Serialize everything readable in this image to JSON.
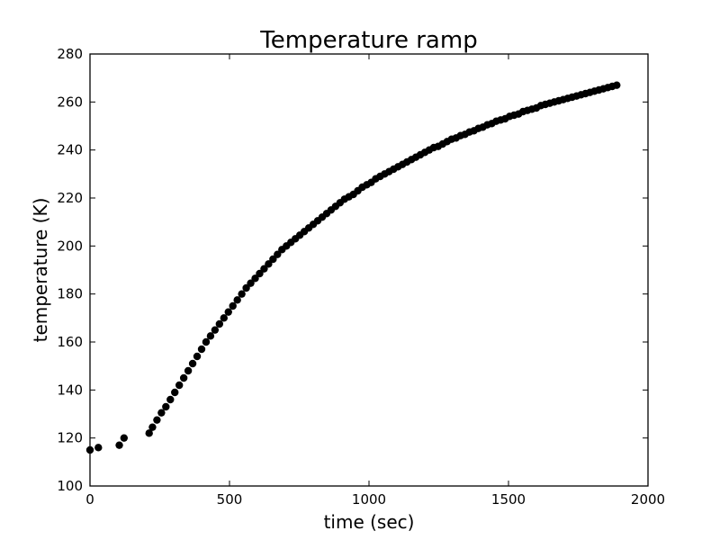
{
  "chart_data": {
    "type": "scatter",
    "title": "Temperature ramp",
    "xlabel": "time (sec)",
    "ylabel": "temperature (K)",
    "xlim": [
      0,
      2000
    ],
    "ylim": [
      100,
      280
    ],
    "xticks": [
      0,
      500,
      1000,
      1500,
      2000
    ],
    "yticks": [
      100,
      120,
      140,
      160,
      180,
      200,
      220,
      240,
      260,
      280
    ],
    "grid": false,
    "legend": "none",
    "marker_color": "#000000",
    "series": [
      {
        "points": [
          [
            0,
            115
          ],
          [
            30,
            116
          ],
          [
            105,
            117
          ],
          [
            122,
            120
          ],
          [
            212,
            122
          ],
          [
            224,
            124.5
          ],
          [
            240,
            127.5
          ],
          [
            256,
            130.5
          ],
          [
            272,
            133
          ],
          [
            288,
            136
          ],
          [
            304,
            139
          ],
          [
            320,
            142
          ],
          [
            336,
            145
          ],
          [
            352,
            148
          ],
          [
            368,
            151
          ],
          [
            384,
            154
          ],
          [
            400,
            157
          ],
          [
            416,
            160
          ],
          [
            432,
            162.5
          ],
          [
            448,
            165
          ],
          [
            464,
            167.5
          ],
          [
            480,
            170
          ],
          [
            496,
            172.5
          ],
          [
            512,
            175
          ],
          [
            528,
            177.5
          ],
          [
            544,
            180
          ],
          [
            560,
            182.5
          ],
          [
            576,
            184.5
          ],
          [
            592,
            186.5
          ],
          [
            608,
            188.5
          ],
          [
            624,
            190.5
          ],
          [
            640,
            192.5
          ],
          [
            656,
            194.5
          ],
          [
            672,
            196.5
          ],
          [
            688,
            198.5
          ],
          [
            704,
            200
          ],
          [
            720,
            201.5
          ],
          [
            736,
            203
          ],
          [
            752,
            204.5
          ],
          [
            768,
            206
          ],
          [
            784,
            207.5
          ],
          [
            800,
            209
          ],
          [
            816,
            210.5
          ],
          [
            832,
            212
          ],
          [
            848,
            213.5
          ],
          [
            864,
            215
          ],
          [
            880,
            216.5
          ],
          [
            896,
            218
          ],
          [
            912,
            219.5
          ],
          [
            928,
            220.5
          ],
          [
            944,
            221.5
          ],
          [
            960,
            223
          ],
          [
            976,
            224.5
          ],
          [
            992,
            225.5
          ],
          [
            1008,
            226.5
          ],
          [
            1024,
            228
          ],
          [
            1040,
            229
          ],
          [
            1056,
            230
          ],
          [
            1072,
            231
          ],
          [
            1088,
            232
          ],
          [
            1104,
            233
          ],
          [
            1120,
            234
          ],
          [
            1136,
            235
          ],
          [
            1152,
            236
          ],
          [
            1168,
            237
          ],
          [
            1184,
            238
          ],
          [
            1200,
            239
          ],
          [
            1216,
            240
          ],
          [
            1232,
            241
          ],
          [
            1248,
            241.5
          ],
          [
            1264,
            242.5
          ],
          [
            1280,
            243.5
          ],
          [
            1296,
            244.5
          ],
          [
            1312,
            245
          ],
          [
            1328,
            246
          ],
          [
            1344,
            246.5
          ],
          [
            1360,
            247.5
          ],
          [
            1376,
            248
          ],
          [
            1392,
            249
          ],
          [
            1408,
            249.5
          ],
          [
            1424,
            250.5
          ],
          [
            1440,
            251
          ],
          [
            1456,
            252
          ],
          [
            1472,
            252.5
          ],
          [
            1488,
            253
          ],
          [
            1504,
            254
          ],
          [
            1520,
            254.5
          ],
          [
            1536,
            255
          ],
          [
            1552,
            256
          ],
          [
            1568,
            256.5
          ],
          [
            1584,
            257
          ],
          [
            1600,
            257.5
          ],
          [
            1616,
            258.5
          ],
          [
            1632,
            259
          ],
          [
            1648,
            259.5
          ],
          [
            1664,
            260
          ],
          [
            1680,
            260.5
          ],
          [
            1696,
            261
          ],
          [
            1712,
            261.5
          ],
          [
            1728,
            262
          ],
          [
            1744,
            262.5
          ],
          [
            1760,
            263
          ],
          [
            1776,
            263.5
          ],
          [
            1792,
            264
          ],
          [
            1808,
            264.5
          ],
          [
            1824,
            265
          ],
          [
            1840,
            265.5
          ],
          [
            1856,
            266
          ],
          [
            1872,
            266.5
          ],
          [
            1888,
            267
          ]
        ]
      }
    ]
  }
}
